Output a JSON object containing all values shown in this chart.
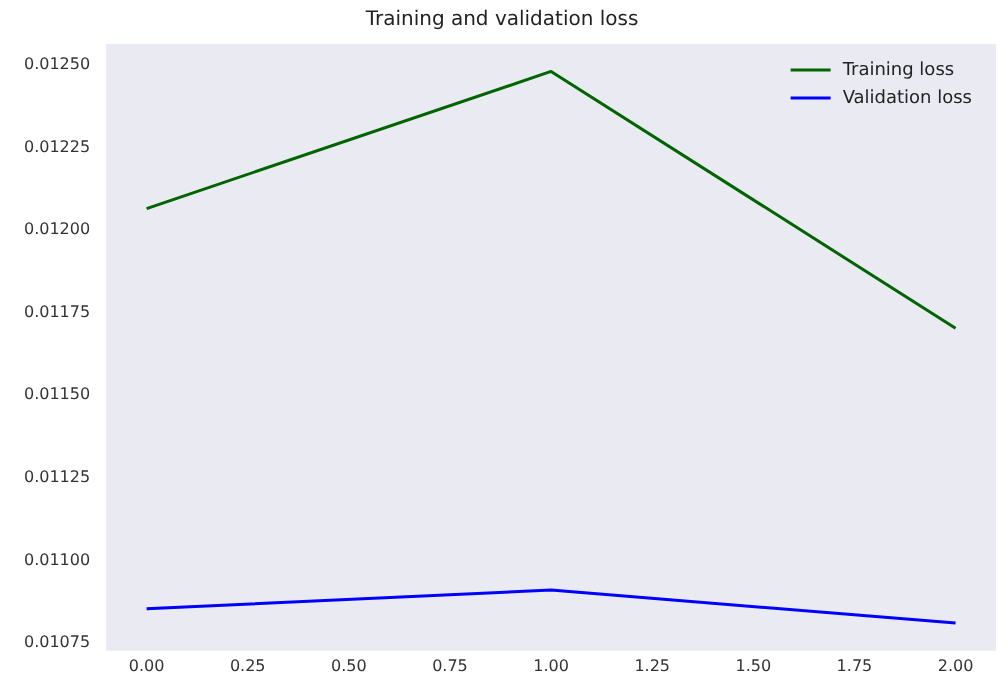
{
  "chart_data": {
    "type": "line",
    "title": "Training and validation loss",
    "x": [
      0,
      1,
      2
    ],
    "series": [
      {
        "name": "Training loss",
        "color": "#006400",
        "values": [
          0.012065,
          0.01248,
          0.011703
        ]
      },
      {
        "name": "Validation loss",
        "color": "#0000ff",
        "values": [
          0.010854,
          0.010911,
          0.010811
        ]
      }
    ],
    "xlim": [
      -0.1,
      2.1
    ],
    "xticks": [
      {
        "value": 0,
        "label": "0.00"
      },
      {
        "value": 0.25,
        "label": "0.25"
      },
      {
        "value": 0.5,
        "label": "0.50"
      },
      {
        "value": 0.75,
        "label": "0.75"
      },
      {
        "value": 1,
        "label": "1.00"
      },
      {
        "value": 1.25,
        "label": "1.25"
      },
      {
        "value": 1.5,
        "label": "1.50"
      },
      {
        "value": 1.75,
        "label": "1.75"
      },
      {
        "value": 2,
        "label": "2.00"
      }
    ],
    "ylim": [
      0.010727,
      0.012563
    ],
    "yticks": [
      {
        "value": 0.01075,
        "label": "0.01075"
      },
      {
        "value": 0.011,
        "label": "0.01100"
      },
      {
        "value": 0.01125,
        "label": "0.01125"
      },
      {
        "value": 0.0115,
        "label": "0.01150"
      },
      {
        "value": 0.01175,
        "label": "0.01175"
      },
      {
        "value": 0.012,
        "label": "0.01200"
      },
      {
        "value": 0.01225,
        "label": "0.01225"
      },
      {
        "value": 0.0125,
        "label": "0.01250"
      }
    ],
    "grid": false,
    "legend": "top right",
    "marker": "none",
    "line_style": "solid"
  }
}
